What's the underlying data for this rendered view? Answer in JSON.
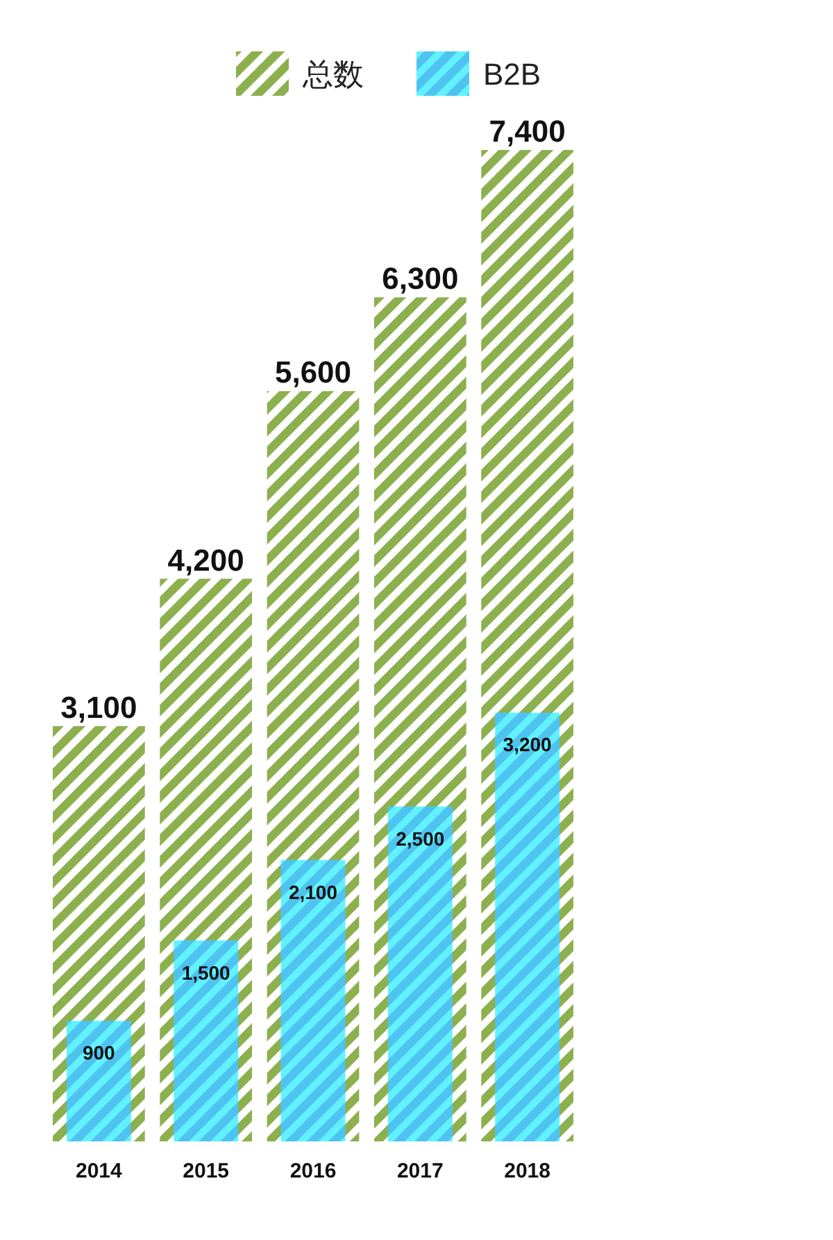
{
  "chart_data": {
    "type": "bar",
    "categories": [
      "2014",
      "2015",
      "2016",
      "2017",
      "2018"
    ],
    "series": [
      {
        "name": "总数",
        "color": "#8db04f",
        "values": [
          3100,
          4200,
          5600,
          6300,
          7400
        ],
        "value_labels": [
          "3,100",
          "4,200",
          "5,600",
          "6,300",
          "7,400"
        ]
      },
      {
        "name": "B2B",
        "color": "#4fc3f0",
        "values": [
          900,
          1500,
          2100,
          2500,
          3200
        ],
        "value_labels": [
          "900",
          "1,500",
          "2,100",
          "2,500",
          "3,200"
        ]
      }
    ],
    "legend": "top"
  }
}
